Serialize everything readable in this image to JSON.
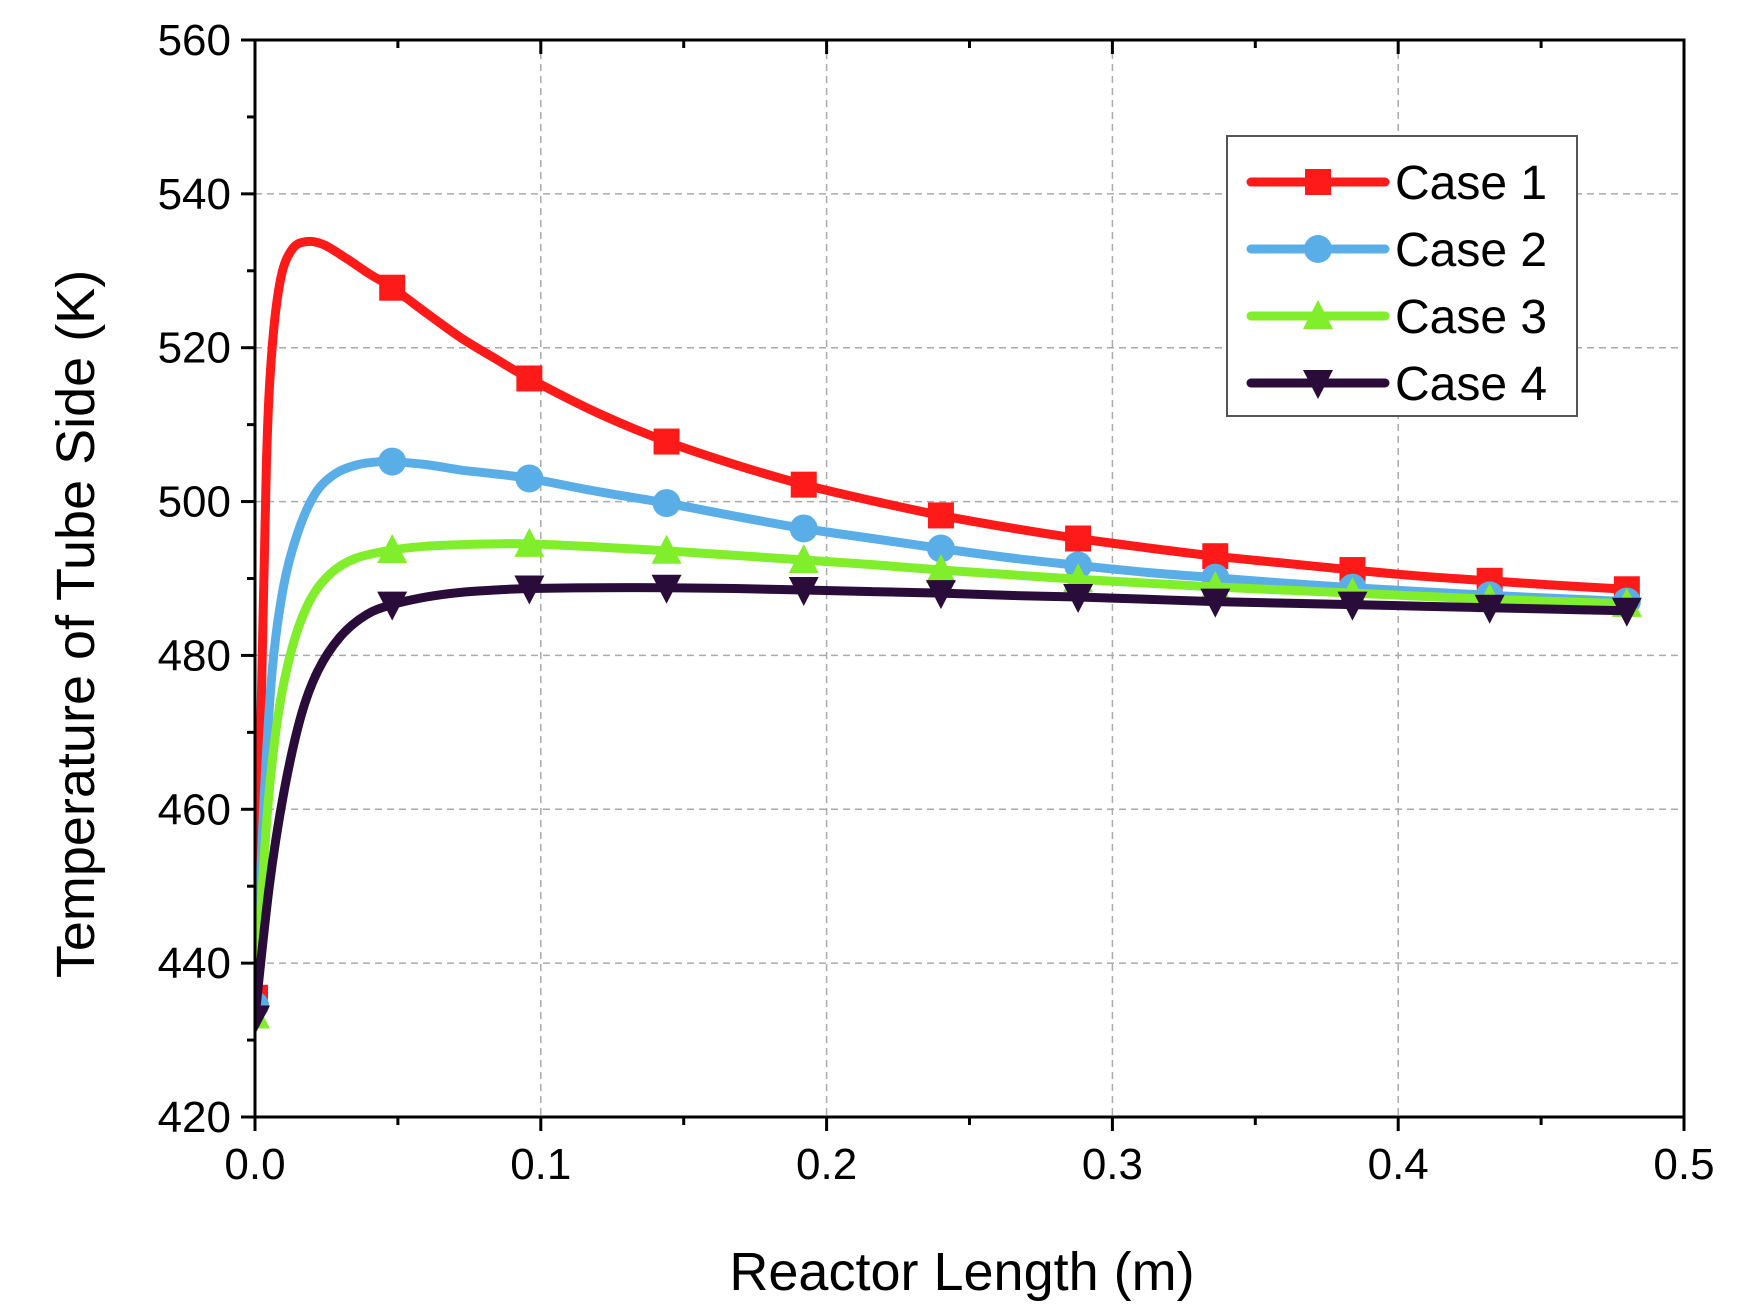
{
  "chart_data": {
    "type": "line",
    "title": "",
    "xlabel": "Reactor Length (m)",
    "ylabel": "Temperature of Tube Side (K)",
    "xlim": [
      0.0,
      0.5
    ],
    "ylim": [
      420,
      560
    ],
    "xticks": [
      0.0,
      0.1,
      0.2,
      0.3,
      0.4,
      0.5
    ],
    "xtick_labels": [
      "0.0",
      "0.1",
      "0.2",
      "0.3",
      "0.4",
      "0.5"
    ],
    "yticks": [
      420,
      440,
      460,
      480,
      500,
      520,
      540,
      560
    ],
    "ytick_labels": [
      "420",
      "440",
      "460",
      "480",
      "500",
      "520",
      "540",
      "560"
    ],
    "grid": true,
    "legend_position": "top-right",
    "series": [
      {
        "name": "Case 1",
        "color": "#ff1a1a",
        "marker": "square",
        "curve": [
          [
            0.0,
            433
          ],
          [
            0.002,
            470
          ],
          [
            0.004,
            505
          ],
          [
            0.006,
            520
          ],
          [
            0.009,
            529
          ],
          [
            0.013,
            532.8
          ],
          [
            0.018,
            533.8
          ],
          [
            0.024,
            533.4
          ],
          [
            0.032,
            531.6
          ],
          [
            0.04,
            529.6
          ],
          [
            0.048,
            527.8
          ],
          [
            0.06,
            524.5
          ],
          [
            0.072,
            521.3
          ],
          [
            0.084,
            518.6
          ],
          [
            0.096,
            516.0
          ],
          [
            0.12,
            511.5
          ],
          [
            0.144,
            507.8
          ],
          [
            0.168,
            504.8
          ],
          [
            0.192,
            502.2
          ],
          [
            0.216,
            500.1
          ],
          [
            0.24,
            498.2
          ],
          [
            0.264,
            496.6
          ],
          [
            0.288,
            495.2
          ],
          [
            0.312,
            494.0
          ],
          [
            0.336,
            492.9
          ],
          [
            0.36,
            492.0
          ],
          [
            0.384,
            491.1
          ],
          [
            0.408,
            490.3
          ],
          [
            0.432,
            489.7
          ],
          [
            0.456,
            489.1
          ],
          [
            0.48,
            488.6
          ]
        ],
        "markers": [
          [
            0.0,
            435.5
          ],
          [
            0.048,
            527.8
          ],
          [
            0.096,
            516.0
          ],
          [
            0.144,
            507.8
          ],
          [
            0.192,
            502.2
          ],
          [
            0.24,
            498.2
          ],
          [
            0.288,
            495.2
          ],
          [
            0.336,
            492.9
          ],
          [
            0.384,
            491.1
          ],
          [
            0.432,
            489.7
          ],
          [
            0.48,
            488.6
          ]
        ]
      },
      {
        "name": "Case 2",
        "color": "#5aaee8",
        "marker": "circle",
        "curve": [
          [
            0.0,
            433
          ],
          [
            0.003,
            460
          ],
          [
            0.006,
            478
          ],
          [
            0.01,
            489
          ],
          [
            0.015,
            496
          ],
          [
            0.021,
            501
          ],
          [
            0.028,
            503.6
          ],
          [
            0.036,
            504.8
          ],
          [
            0.044,
            505.2
          ],
          [
            0.048,
            505.2
          ],
          [
            0.06,
            504.8
          ],
          [
            0.072,
            504.1
          ],
          [
            0.084,
            503.6
          ],
          [
            0.096,
            503.0
          ],
          [
            0.12,
            501.3
          ],
          [
            0.144,
            499.8
          ],
          [
            0.168,
            498.1
          ],
          [
            0.192,
            496.5
          ],
          [
            0.216,
            495.2
          ],
          [
            0.24,
            493.9
          ],
          [
            0.264,
            492.7
          ],
          [
            0.288,
            491.7
          ],
          [
            0.312,
            490.8
          ],
          [
            0.336,
            490.1
          ],
          [
            0.36,
            489.4
          ],
          [
            0.384,
            488.8
          ],
          [
            0.408,
            488.3
          ],
          [
            0.432,
            487.8
          ],
          [
            0.456,
            487.4
          ],
          [
            0.48,
            487.0
          ]
        ],
        "markers": [
          [
            0.0,
            434.5
          ],
          [
            0.048,
            505.2
          ],
          [
            0.096,
            503.0
          ],
          [
            0.144,
            499.8
          ],
          [
            0.192,
            496.5
          ],
          [
            0.24,
            493.9
          ],
          [
            0.288,
            491.7
          ],
          [
            0.336,
            490.1
          ],
          [
            0.384,
            488.8
          ],
          [
            0.432,
            487.8
          ],
          [
            0.48,
            487.0
          ]
        ]
      },
      {
        "name": "Case 3",
        "color": "#80ee2a",
        "marker": "triangle-up",
        "curve": [
          [
            0.0,
            433
          ],
          [
            0.004,
            458
          ],
          [
            0.008,
            472
          ],
          [
            0.013,
            481
          ],
          [
            0.019,
            487
          ],
          [
            0.026,
            490.5
          ],
          [
            0.035,
            492.6
          ],
          [
            0.048,
            493.7
          ],
          [
            0.06,
            494.2
          ],
          [
            0.072,
            494.4
          ],
          [
            0.084,
            494.5
          ],
          [
            0.096,
            494.5
          ],
          [
            0.12,
            494.1
          ],
          [
            0.144,
            493.6
          ],
          [
            0.168,
            493.0
          ],
          [
            0.192,
            492.4
          ],
          [
            0.216,
            491.8
          ],
          [
            0.24,
            491.1
          ],
          [
            0.264,
            490.5
          ],
          [
            0.288,
            489.9
          ],
          [
            0.312,
            489.4
          ],
          [
            0.336,
            488.9
          ],
          [
            0.36,
            488.5
          ],
          [
            0.384,
            488.1
          ],
          [
            0.408,
            487.7
          ],
          [
            0.432,
            487.3
          ],
          [
            0.456,
            487.0
          ],
          [
            0.48,
            486.7
          ]
        ],
        "markers": [
          [
            0.0,
            433.2
          ],
          [
            0.048,
            493.7
          ],
          [
            0.096,
            494.5
          ],
          [
            0.144,
            493.6
          ],
          [
            0.192,
            492.4
          ],
          [
            0.24,
            491.1
          ],
          [
            0.288,
            489.9
          ],
          [
            0.336,
            488.9
          ],
          [
            0.384,
            488.1
          ],
          [
            0.432,
            487.3
          ],
          [
            0.48,
            486.7
          ]
        ]
      },
      {
        "name": "Case 4",
        "color": "#2a0c3a",
        "marker": "triangle-down",
        "curve": [
          [
            0.0,
            433
          ],
          [
            0.005,
            450
          ],
          [
            0.01,
            462
          ],
          [
            0.016,
            472
          ],
          [
            0.022,
            478
          ],
          [
            0.03,
            482.5
          ],
          [
            0.039,
            485.3
          ],
          [
            0.048,
            486.6
          ],
          [
            0.06,
            487.6
          ],
          [
            0.072,
            488.2
          ],
          [
            0.084,
            488.5
          ],
          [
            0.096,
            488.7
          ],
          [
            0.12,
            488.8
          ],
          [
            0.144,
            488.8
          ],
          [
            0.168,
            488.7
          ],
          [
            0.192,
            488.5
          ],
          [
            0.216,
            488.3
          ],
          [
            0.24,
            488.1
          ],
          [
            0.264,
            487.8
          ],
          [
            0.288,
            487.6
          ],
          [
            0.312,
            487.3
          ],
          [
            0.336,
            487.0
          ],
          [
            0.36,
            486.8
          ],
          [
            0.384,
            486.6
          ],
          [
            0.408,
            486.4
          ],
          [
            0.432,
            486.2
          ],
          [
            0.456,
            486.0
          ],
          [
            0.48,
            485.8
          ]
        ],
        "markers": [
          [
            0.0,
            432.8
          ],
          [
            0.048,
            486.6
          ],
          [
            0.096,
            488.7
          ],
          [
            0.144,
            488.8
          ],
          [
            0.192,
            488.5
          ],
          [
            0.24,
            488.1
          ],
          [
            0.288,
            487.6
          ],
          [
            0.336,
            487.0
          ],
          [
            0.384,
            486.6
          ],
          [
            0.432,
            486.2
          ],
          [
            0.48,
            485.8
          ]
        ]
      }
    ]
  }
}
